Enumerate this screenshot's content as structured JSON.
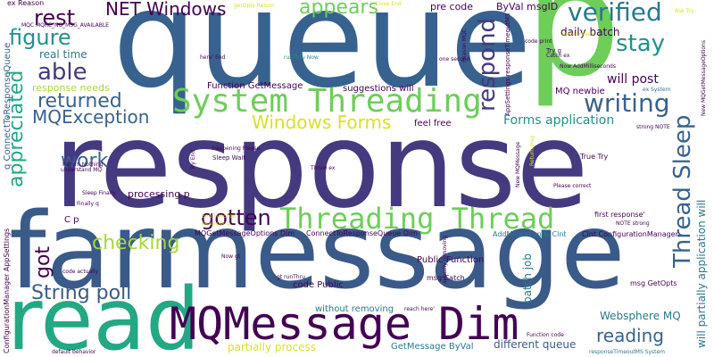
{
  "cloud": {
    "big": {
      "response": "response",
      "queue": "queue",
      "p": "p",
      "farmessage": "farmessage",
      "read": "read",
      "mqmessage": "MQMessage Dim"
    },
    "medium": {
      "net_windows": "NET Windows",
      "appears": "appears",
      "verified": "verified",
      "rest": "rest",
      "figure": "figure",
      "stay": "stay",
      "able": "able",
      "system_threading": "System Threading",
      "returned": "returned",
      "writing": "writing",
      "mqexception": "MQException",
      "respond": "respond",
      "appreciated": "appreciated",
      "windows_forms": "Windows Forms",
      "work": "work",
      "checking": "checking",
      "gotten": "gotten",
      "threading_thread": "Threading Thread",
      "thread_sleep": "Thread Sleep",
      "string_poll": "String poll",
      "got": "got",
      "reading": "reading",
      "websphere": "Websphere MQ",
      "will_post": "will post",
      "forms_application": "Forms application",
      "will_partially": "will partially application will"
    },
    "small": {
      "real_time": "real time",
      "response_needs": "response needs",
      "function_getmessage": "Function GetMessage",
      "suggestions_will": "suggestions will",
      "daily_batch": "daily batch",
      "mq_newbie": "MQ newbie",
      "pre_code": "pre code",
      "byval_msgid": "ByVal msgID",
      "feel_free": "feel free",
      "processing_p": "processing p",
      "public_function": "Public Function",
      "code_public": "code Public",
      "without_removing": "without removing",
      "partially_process": "partially process",
      "getmessage_byval": "GetMessage ByVal",
      "different_queue": "different queue",
      "batch_job": "batch job",
      "msg_catch": "msg Catch",
      "msg_getopts": "msg GetOpts",
      "connecttoresponsequeue_dim": "ConnectToResponseQueue Dim",
      "mqgetmessageoptions_dim": "MQGetMessageOptions Dim",
      "addmilliseconds": "AddMilliseconds Clnt",
      "clnt_config": "Clnt ConfigurationManager",
      "true_try": "True Try",
      "first_response": "first response'",
      "c_p": "C p",
      "q_connect": "q ConnectToResponseQueue",
      "ex_reason": "ex Reason",
      "getopts_return": "getOpts Return",
      "close_end": "Close End",
      "one_second": "one second",
      "runthru_now": "runThru Now",
      "here_end": "here' End",
      "now_addms": "Now AddMilliseconds",
      "catch_ex": "Catch ex",
      "try_q": "Try q",
      "code_print": "code print",
      "ex_system": "ex System",
      "happening": "happening Please",
      "sleep_wait": "Sleep Wait",
      "throw_ex": "Throw ex",
      "return_nothing": "Return Nothing",
      "understand_mq": "understand MQ",
      "strong_note": "strong NOTE",
      "please_correct": "Please correct",
      "note_strong": "NOTE strong",
      "reach_here": "reach here'",
      "function_code": "Function code",
      "default_behavior": "default behavior",
      "response_timeout": "responseTimeoutMS System",
      "configuration_appsettings": "ConfigurationManager AppSettings",
      "mqgmo": "MQC MQRC_NO_MSG_AVAILABLE",
      "reason_mqc": "Reason MQC",
      "appsettings_rt": "AppSettings responseTimeoutMS",
      "new_mqgmo": "New MQGetMessageOptions",
      "actually_removing": "actually removing",
      "code_actually": "code actually",
      "now_gt": "Now gt",
      "gt_runthru": "gt runThru",
      "sleep_finally": "Sleep Finally",
      "finally_q": "Finally q",
      "behavior_p": "behavior p",
      "end_function": "End Function",
      "never_reach": "never reach",
      "new_mqmessage": "New MQMessage",
      "return_msg": "Return msg",
      "try_end": "Try End",
      "ask_try": "Ask Try"
    }
  }
}
